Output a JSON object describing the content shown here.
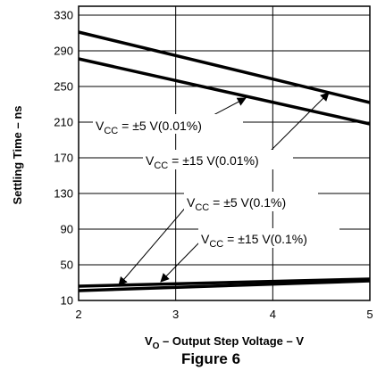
{
  "figure_label": "Figure 6",
  "chart_data": {
    "type": "line",
    "xlabel_main": "V",
    "xlabel_sub": "O",
    "xlabel_rest": " – Output Step Voltage – V",
    "ylabel": "Settling Time – ns",
    "xlim": [
      2,
      5
    ],
    "ylim": [
      10,
      340
    ],
    "x_ticks": [
      "2",
      "3",
      "4",
      "5"
    ],
    "y_ticks": [
      "10",
      "50",
      "90",
      "130",
      "170",
      "210",
      "250",
      "290",
      "330"
    ],
    "grid": true,
    "series": [
      {
        "x": [
          2,
          5
        ],
        "y": [
          311,
          232
        ]
      },
      {
        "x": [
          2,
          5
        ],
        "y": [
          281,
          208
        ]
      },
      {
        "x": [
          2,
          5
        ],
        "y": [
          26,
          34
        ]
      },
      {
        "x": [
          2,
          5
        ],
        "y": [
          21,
          32
        ]
      }
    ],
    "annotations": [
      {
        "prefix": "V",
        "sub": "CC",
        "text": " = ±5 V(0.01%)"
      },
      {
        "prefix": "V",
        "sub": "CC",
        "text": " = ±15 V(0.01%)"
      },
      {
        "prefix": "V",
        "sub": "CC",
        "text": " = ±5 V(0.1%)"
      },
      {
        "prefix": "V",
        "sub": "CC",
        "text": " = ±15 V(0.1%)"
      }
    ]
  }
}
